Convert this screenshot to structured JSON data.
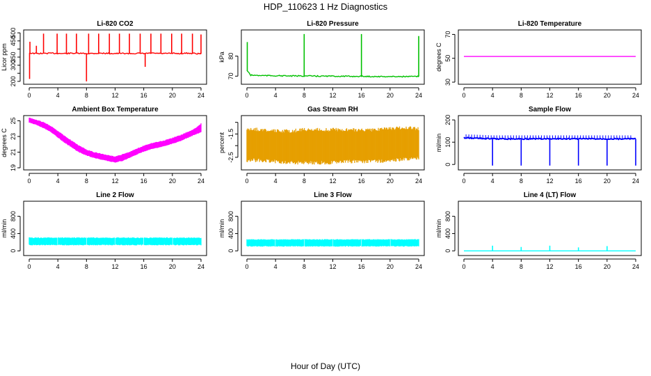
{
  "figure": {
    "title": "HDP_110623  1 Hz Diagnostics",
    "xlabel": "Hour of Day (UTC)"
  },
  "chart_data": [
    {
      "type": "line",
      "title": "Li-820 CO2",
      "ylabel": "Licor ppm",
      "color": "#ff0000",
      "xlim": [
        0,
        24
      ],
      "ylim": [
        195,
        505
      ],
      "xticks": [
        0,
        4,
        8,
        12,
        16,
        20,
        24
      ],
      "yticks": [
        200,
        250,
        300,
        350,
        400,
        450,
        500
      ],
      "ytick_labels": [
        "200",
        "",
        "300",
        "350",
        "",
        "450",
        "500"
      ],
      "series": [
        {
          "x": [
            0,
            1,
            2,
            3,
            4,
            5,
            6,
            7,
            8,
            9,
            10,
            11,
            12,
            13,
            14,
            15,
            16,
            17,
            18,
            19,
            20,
            21,
            22,
            23,
            24
          ],
          "y": [
            375,
            372,
            373,
            374,
            373,
            372,
            374,
            373,
            372,
            373,
            374,
            373,
            372,
            373,
            372,
            373,
            372,
            374,
            373,
            372,
            373,
            372,
            374,
            373,
            370
          ]
        }
      ],
      "spikes": [
        {
          "x": 0.05,
          "y": 215
        },
        {
          "x": 0.1,
          "y": 445
        },
        {
          "x": 1.0,
          "y": 420
        },
        {
          "x": 2.0,
          "y": 495
        },
        {
          "x": 3.9,
          "y": 495
        },
        {
          "x": 5.2,
          "y": 495
        },
        {
          "x": 6.6,
          "y": 495
        },
        {
          "x": 8.0,
          "y": 200
        },
        {
          "x": 8.3,
          "y": 495
        },
        {
          "x": 9.7,
          "y": 495
        },
        {
          "x": 11.2,
          "y": 495
        },
        {
          "x": 12.6,
          "y": 495
        },
        {
          "x": 14.0,
          "y": 495
        },
        {
          "x": 15.5,
          "y": 495
        },
        {
          "x": 16.2,
          "y": 290
        },
        {
          "x": 17.0,
          "y": 495
        },
        {
          "x": 18.4,
          "y": 495
        },
        {
          "x": 19.9,
          "y": 495
        },
        {
          "x": 21.3,
          "y": 495
        },
        {
          "x": 22.8,
          "y": 495
        },
        {
          "x": 24.0,
          "y": 490
        }
      ]
    },
    {
      "type": "line",
      "title": "Li-820 Pressure",
      "ylabel": "kPa",
      "color": "#00c000",
      "xlim": [
        0,
        24
      ],
      "ylim": [
        67,
        92
      ],
      "xticks": [
        0,
        4,
        8,
        12,
        16,
        20,
        24
      ],
      "yticks": [
        70,
        80
      ],
      "ytick_labels": [
        "70",
        "80"
      ],
      "series": [
        {
          "x": [
            0,
            0.5,
            2,
            4,
            6,
            8,
            10,
            12,
            14,
            16,
            18,
            20,
            22,
            24
          ],
          "y": [
            73,
            70.5,
            70.3,
            70.2,
            70.1,
            70.1,
            70.0,
            70.0,
            69.9,
            69.9,
            69.8,
            69.8,
            69.8,
            69.8
          ]
        }
      ],
      "spikes": [
        {
          "x": 0.05,
          "y": 87
        },
        {
          "x": 8.0,
          "y": 91
        },
        {
          "x": 16.0,
          "y": 91
        },
        {
          "x": 24.0,
          "y": 90
        }
      ]
    },
    {
      "type": "line",
      "title": "Li-820 Temperature",
      "ylabel": "degrees C",
      "color": "#ff00ff",
      "xlim": [
        0,
        24
      ],
      "ylim": [
        30,
        72
      ],
      "xticks": [
        0,
        4,
        8,
        12,
        16,
        20,
        24
      ],
      "yticks": [
        30,
        50,
        70
      ],
      "ytick_labels": [
        "30",
        "50",
        "70"
      ],
      "series": [
        {
          "x": [
            0,
            24
          ],
          "y": [
            51.5,
            51.5
          ]
        }
      ]
    },
    {
      "type": "area",
      "title": "Ambient Box Temperature",
      "ylabel": "degrees C",
      "color": "#ff00ff",
      "xlim": [
        0,
        24
      ],
      "ylim": [
        19,
        25.4
      ],
      "xticks": [
        0,
        4,
        8,
        12,
        16,
        20,
        24
      ],
      "yticks": [
        19,
        21,
        23,
        25
      ],
      "ytick_labels": [
        "19",
        "21",
        "23",
        "25"
      ],
      "series": [
        {
          "x": [
            0,
            1,
            2,
            3,
            4,
            5,
            6,
            7,
            8,
            9,
            10,
            11,
            12,
            13,
            14,
            15,
            16,
            17,
            18,
            19,
            20,
            21,
            22,
            23,
            24
          ],
          "upper": [
            25.4,
            25.1,
            24.8,
            24.3,
            23.7,
            23.0,
            22.4,
            21.8,
            21.3,
            21.0,
            20.8,
            20.6,
            20.4,
            20.7,
            21.0,
            21.4,
            21.8,
            22.1,
            22.3,
            22.5,
            22.8,
            23.1,
            23.5,
            23.9,
            24.6
          ],
          "lower": [
            24.8,
            24.5,
            24.1,
            23.6,
            22.9,
            22.2,
            21.6,
            21.0,
            20.6,
            20.3,
            20.1,
            19.9,
            19.7,
            19.9,
            20.3,
            20.7,
            21.1,
            21.4,
            21.6,
            21.8,
            22.1,
            22.4,
            22.8,
            23.2,
            23.6
          ]
        }
      ]
    },
    {
      "type": "area",
      "title": "Gas Stream RH",
      "ylabel": "percent",
      "color": "#e69f00",
      "xlim": [
        0,
        24
      ],
      "ylim": [
        -2.95,
        -0.8
      ],
      "xticks": [
        0,
        4,
        8,
        12,
        16,
        20,
        24
      ],
      "yticks": [
        -2.5,
        -2.0,
        -1.5,
        -1.0
      ],
      "ytick_labels": [
        "-2.5",
        "",
        "-1.5",
        ""
      ],
      "series": [
        {
          "x": [
            0,
            2,
            4,
            6,
            8,
            10,
            12,
            14,
            16,
            18,
            20,
            22,
            24
          ],
          "upper": [
            -1.3,
            -1.35,
            -1.4,
            -1.4,
            -1.35,
            -1.35,
            -1.35,
            -1.35,
            -1.35,
            -1.35,
            -1.3,
            -1.25,
            -1.3
          ],
          "lower": [
            -2.6,
            -2.6,
            -2.65,
            -2.7,
            -2.7,
            -2.7,
            -2.7,
            -2.65,
            -2.65,
            -2.65,
            -2.6,
            -2.55,
            -2.5
          ]
        }
      ]
    },
    {
      "type": "line",
      "title": "Sample Flow",
      "ylabel": "ml/min",
      "color": "#0000ff",
      "xlim": [
        0,
        24
      ],
      "ylim": [
        -15,
        210
      ],
      "xticks": [
        0,
        4,
        8,
        12,
        16,
        20,
        24
      ],
      "yticks": [
        0,
        100,
        200
      ],
      "ytick_labels": [
        "0",
        "100",
        "200"
      ],
      "series": [
        {
          "x": [
            0,
            4,
            8,
            12,
            16,
            20,
            24
          ],
          "y": [
            120,
            115,
            115,
            115,
            115,
            115,
            115
          ]
        }
      ],
      "dropouts": [
        4,
        8,
        12,
        16,
        20,
        24
      ],
      "dropout_value": -5
    },
    {
      "type": "area",
      "title": "Line 2 Flow",
      "ylabel": "ml/min",
      "color": "#00ffff",
      "xlim": [
        0,
        24
      ],
      "ylim": [
        -60,
        1100
      ],
      "xticks": [
        0,
        4,
        8,
        12,
        16,
        20,
        24
      ],
      "yticks": [
        0,
        400,
        800
      ],
      "ytick_labels": [
        "0",
        "400",
        "800"
      ],
      "series": [
        {
          "x": [
            0,
            24
          ],
          "upper": [
            300,
            300
          ],
          "lower": [
            140,
            140
          ]
        }
      ],
      "gaps": [
        4,
        8,
        12,
        16,
        20
      ]
    },
    {
      "type": "area",
      "title": "Line 3 Flow",
      "ylabel": "ml/min",
      "color": "#00ffff",
      "xlim": [
        0,
        24
      ],
      "ylim": [
        -60,
        1100
      ],
      "xticks": [
        0,
        4,
        8,
        12,
        16,
        20,
        24
      ],
      "yticks": [
        0,
        400,
        800
      ],
      "ytick_labels": [
        "0",
        "400",
        "800"
      ],
      "series": [
        {
          "x": [
            0,
            24
          ],
          "upper": [
            260,
            260
          ],
          "lower": [
            110,
            110
          ]
        }
      ],
      "gaps": [
        4,
        8,
        12,
        16,
        20
      ]
    },
    {
      "type": "line",
      "title": "Line 4 (LT) Flow",
      "ylabel": "ml/min",
      "color": "#00ffff",
      "xlim": [
        0,
        24
      ],
      "ylim": [
        -60,
        1100
      ],
      "xticks": [
        0,
        4,
        8,
        12,
        16,
        20,
        24
      ],
      "yticks": [
        0,
        400,
        800
      ],
      "ytick_labels": [
        "0",
        "400",
        "800"
      ],
      "series": [
        {
          "x": [
            0,
            24
          ],
          "y": [
            0,
            0
          ]
        }
      ],
      "spikes": [
        {
          "x": 4,
          "y": 120
        },
        {
          "x": 8,
          "y": 90
        },
        {
          "x": 12,
          "y": 120
        },
        {
          "x": 16,
          "y": 80
        },
        {
          "x": 20,
          "y": 110
        }
      ]
    }
  ]
}
